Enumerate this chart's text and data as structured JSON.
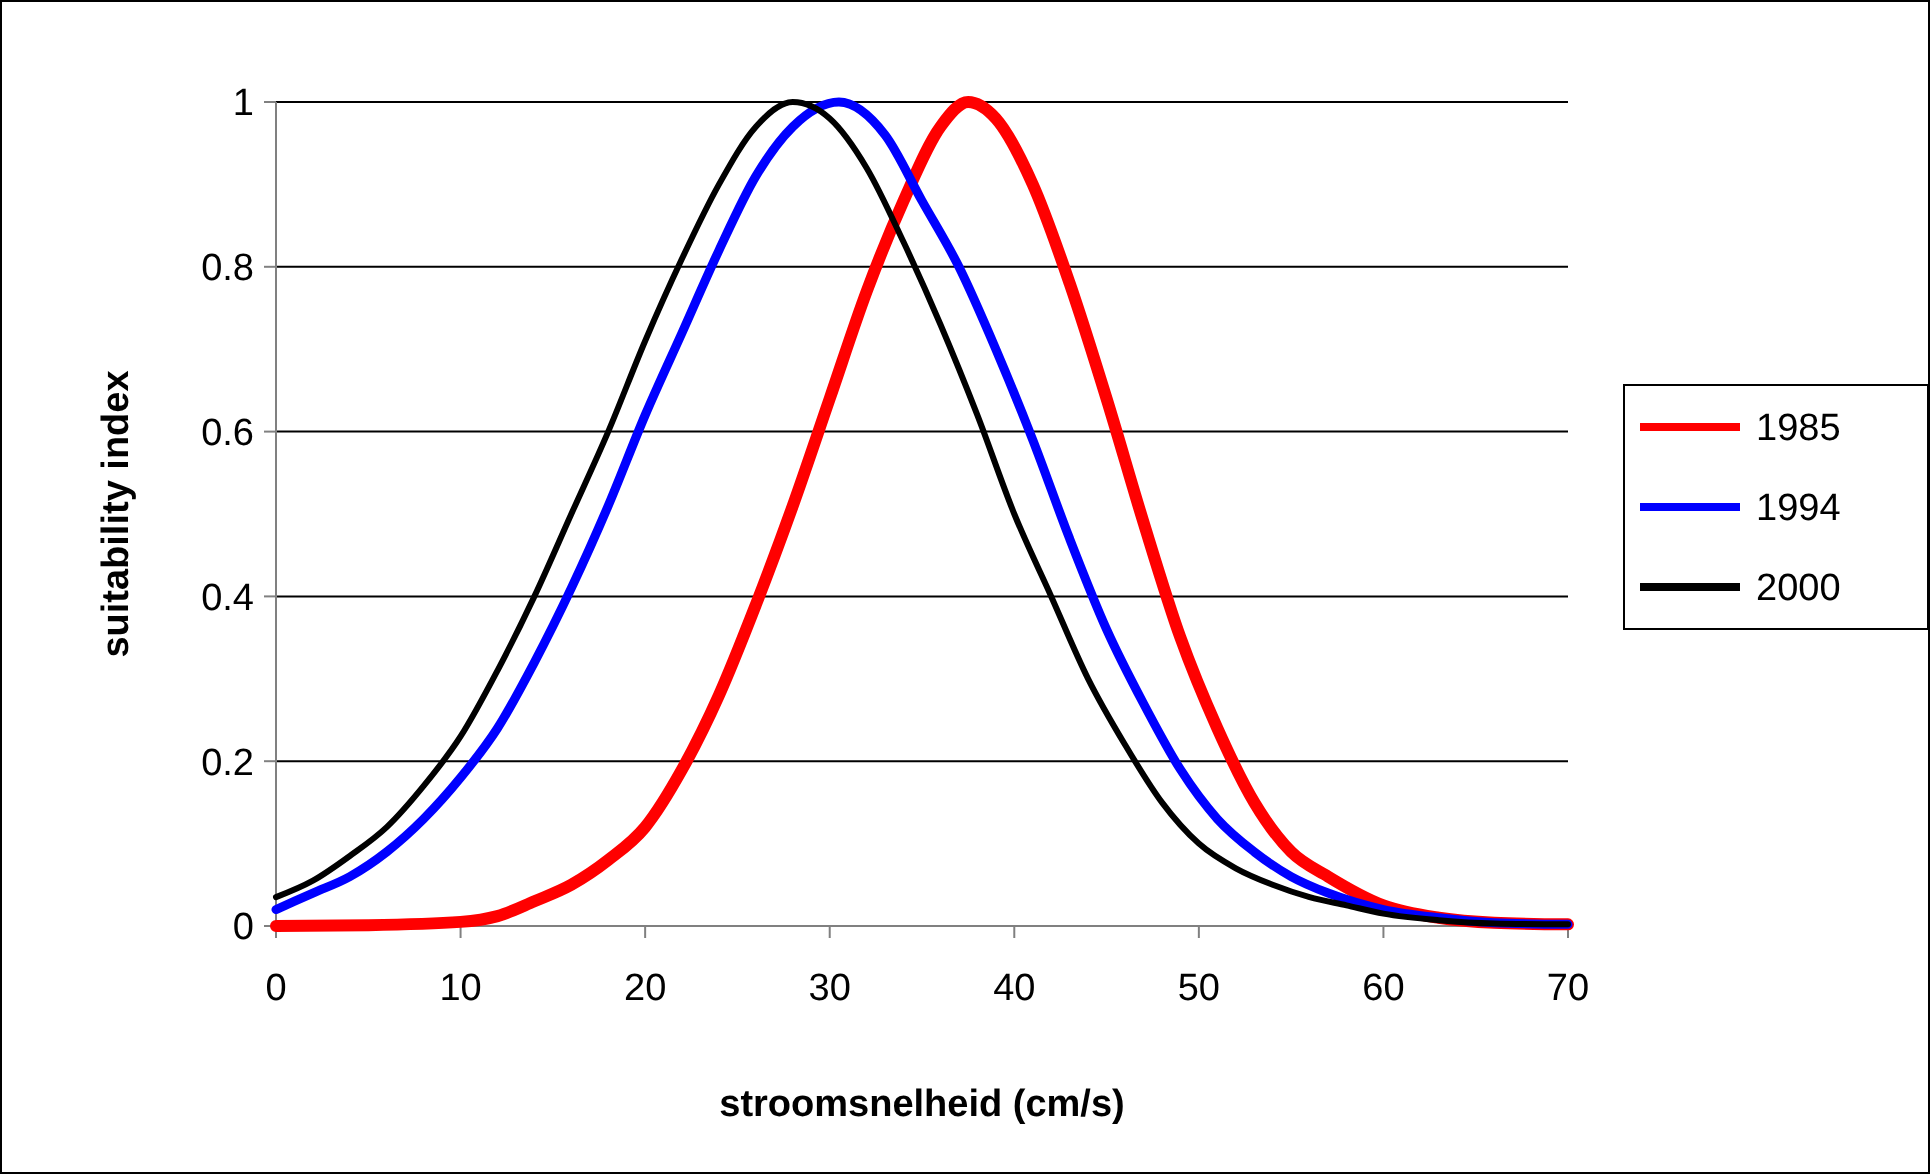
{
  "chart_data": {
    "type": "line",
    "xlabel": "stroomsnelheid (cm/s)",
    "ylabel": "suitability index",
    "xlim": [
      0,
      70
    ],
    "xticks": [
      0,
      10,
      20,
      30,
      40,
      50,
      60,
      70
    ],
    "ylim": [
      0,
      1
    ],
    "yticks": [
      0,
      0.2,
      0.4,
      0.6,
      0.8,
      1
    ],
    "grid": "y",
    "legend": "right",
    "marker": "none",
    "line_style": "solid",
    "series": [
      {
        "name": "1985",
        "color": "#ff0000",
        "x": [
          0,
          5,
          10,
          12,
          14,
          16,
          18,
          20,
          22,
          24,
          26,
          28,
          30,
          32,
          34,
          36,
          37.5,
          39,
          41,
          43,
          45,
          47,
          49,
          51,
          53,
          55,
          57,
          60,
          63,
          66,
          70
        ],
        "values": [
          0,
          0.001,
          0.005,
          0.012,
          0.03,
          0.05,
          0.08,
          0.12,
          0.19,
          0.28,
          0.39,
          0.51,
          0.64,
          0.77,
          0.88,
          0.97,
          1,
          0.98,
          0.9,
          0.78,
          0.64,
          0.49,
          0.35,
          0.24,
          0.15,
          0.09,
          0.06,
          0.025,
          0.01,
          0.004,
          0.002
        ]
      },
      {
        "name": "1994",
        "color": "#0000ff",
        "x": [
          0,
          2,
          4,
          6,
          8,
          10,
          12,
          14,
          16,
          18,
          20,
          22,
          24,
          26,
          28,
          30.5,
          33,
          35,
          37,
          39,
          41,
          43,
          45,
          47,
          49,
          51,
          53,
          55,
          57,
          60,
          63,
          66,
          70
        ],
        "values": [
          0.02,
          0.04,
          0.06,
          0.09,
          0.13,
          0.18,
          0.24,
          0.32,
          0.41,
          0.51,
          0.62,
          0.72,
          0.82,
          0.91,
          0.97,
          1,
          0.96,
          0.88,
          0.8,
          0.7,
          0.59,
          0.47,
          0.36,
          0.27,
          0.19,
          0.13,
          0.09,
          0.06,
          0.04,
          0.02,
          0.01,
          0.004,
          0.002
        ]
      },
      {
        "name": "2000",
        "color": "#000000",
        "x": [
          0,
          2,
          4,
          6,
          8,
          10,
          12,
          14,
          16,
          18,
          20,
          22,
          24,
          26,
          28,
          30,
          32,
          34,
          36,
          38,
          40,
          42,
          44,
          46,
          48,
          50,
          52,
          54,
          56,
          58,
          60,
          63,
          66,
          70
        ],
        "values": [
          0.035,
          0.055,
          0.085,
          0.12,
          0.17,
          0.23,
          0.31,
          0.4,
          0.5,
          0.6,
          0.71,
          0.81,
          0.9,
          0.97,
          1,
          0.98,
          0.92,
          0.83,
          0.73,
          0.62,
          0.5,
          0.4,
          0.3,
          0.22,
          0.15,
          0.1,
          0.07,
          0.05,
          0.035,
          0.025,
          0.015,
          0.007,
          0.003,
          0.002
        ]
      }
    ]
  }
}
